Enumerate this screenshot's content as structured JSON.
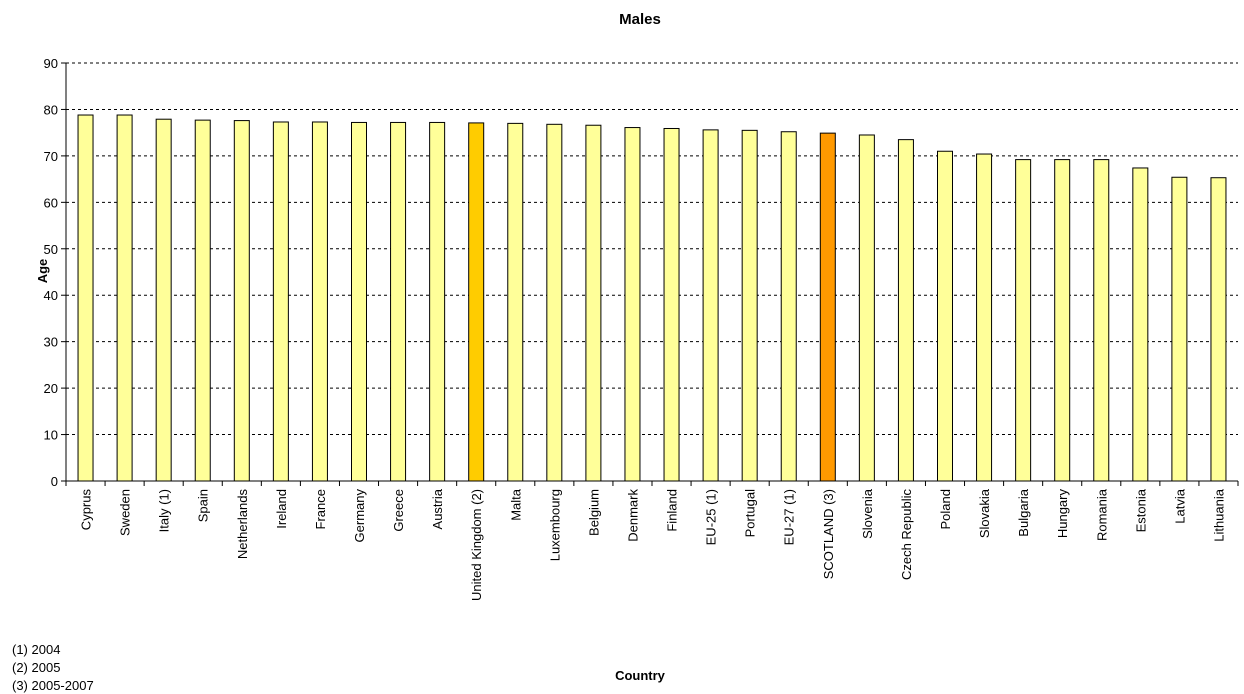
{
  "chart_data": {
    "type": "bar",
    "title": "Males",
    "xlabel": "Country",
    "ylabel": "Age",
    "ylim": [
      0,
      90
    ],
    "yticks": [
      0,
      10,
      20,
      30,
      40,
      50,
      60,
      70,
      80,
      90
    ],
    "grid": "horizontal dashed",
    "categories": [
      "Cyprus",
      "Sweden",
      "Italy (1)",
      "Spain",
      "Netherlands",
      "Ireland",
      "France",
      "Germany",
      "Greece",
      "Austria",
      "United Kingdom (2)",
      "Malta",
      "Luxembourg",
      "Belgium",
      "Denmark",
      "Finland",
      "EU-25 (1)",
      "Portugal",
      "EU-27 (1)",
      "SCOTLAND (3)",
      "Slovenia",
      "Czech Republic",
      "Poland",
      "Slovakia",
      "Bulgaria",
      "Hungary",
      "Romania",
      "Estonia",
      "Latvia",
      "Lithuania"
    ],
    "values": [
      78.8,
      78.8,
      77.9,
      77.7,
      77.6,
      77.3,
      77.3,
      77.2,
      77.2,
      77.2,
      77.1,
      77.0,
      76.8,
      76.6,
      76.1,
      75.9,
      75.6,
      75.5,
      75.2,
      74.9,
      74.5,
      73.5,
      71.0,
      70.4,
      69.2,
      69.2,
      69.2,
      67.4,
      65.4,
      65.3
    ],
    "colors": {
      "default": "#ffff99",
      "United Kingdom (2)": "#ffcc00",
      "SCOTLAND (3)": "#ff9900",
      "bar_border": "#000000",
      "grid": "#000000"
    }
  },
  "footnotes": [
    "(1) 2004",
    "(2) 2005",
    "(3) 2005-2007"
  ]
}
